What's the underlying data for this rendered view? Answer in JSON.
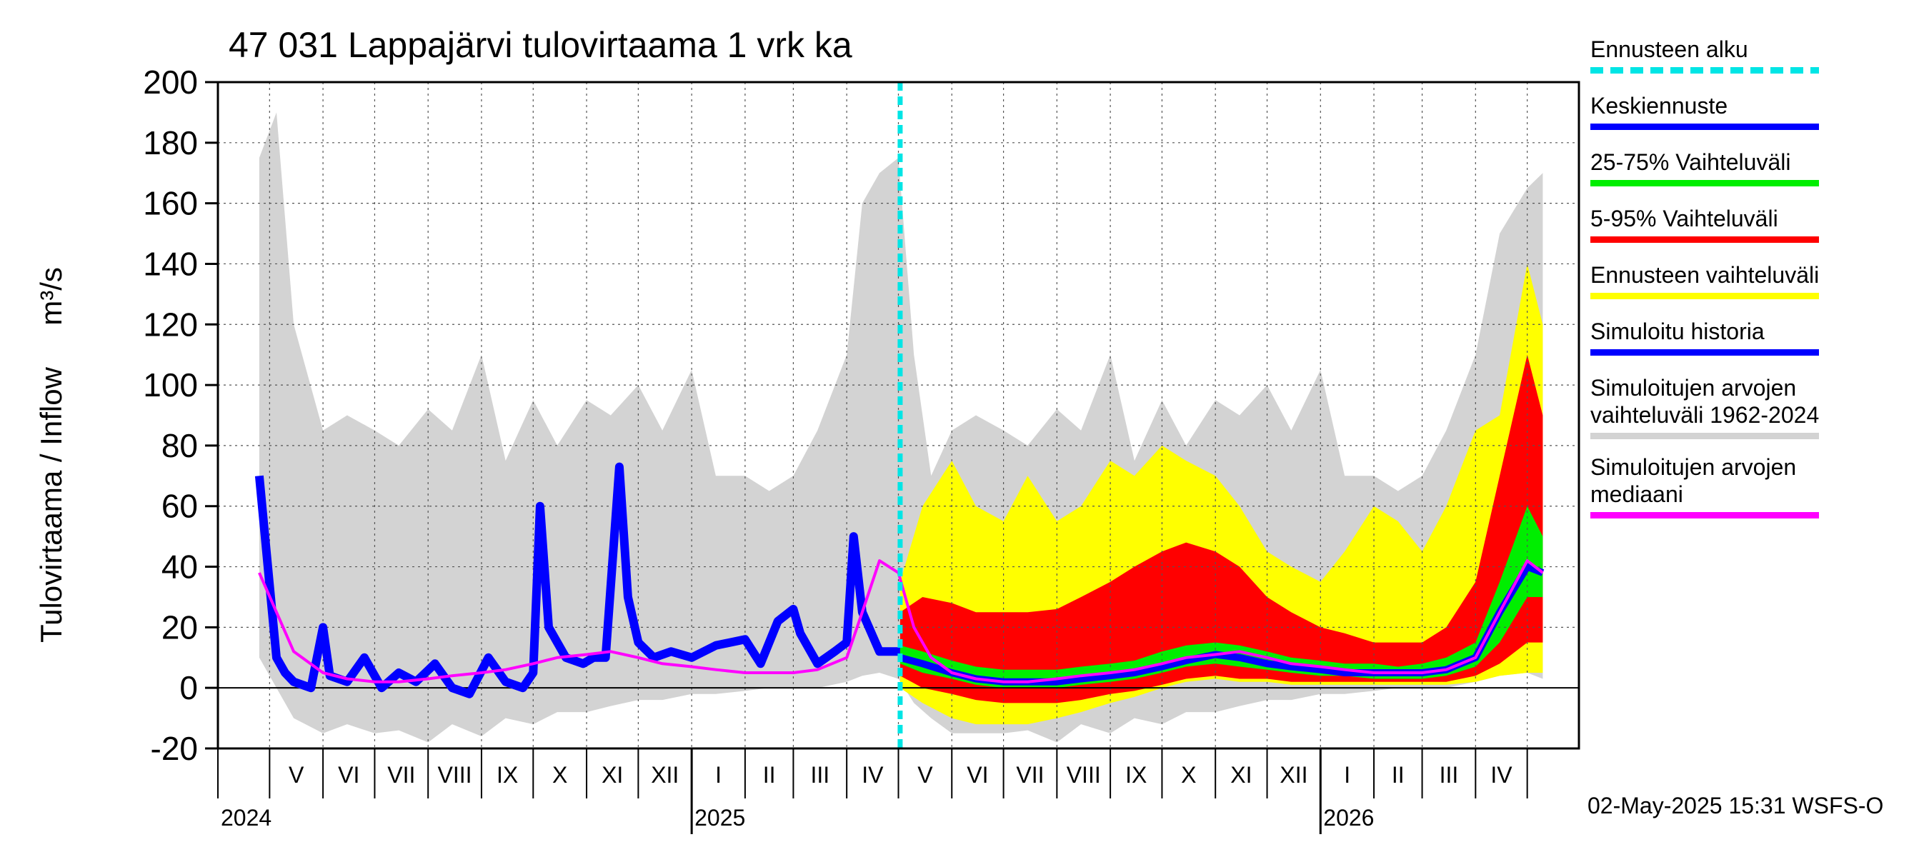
{
  "title": "47 031 Lappajärvi tulovirtaama 1 vrk ka",
  "y_axis_label": "Tulovirtaama / Inflow",
  "y_axis_unit": "m³/s",
  "timestamp": "02-May-2025 15:31 WSFS-O",
  "colors": {
    "forecast_start": "#00e5e5",
    "mean_forecast": "#0000ff",
    "range_25_75": "#00ee00",
    "range_5_95": "#ff0000",
    "forecast_range": "#ffff00",
    "simulated_history": "#0000ff",
    "historical_range": "#d3d3d3",
    "historical_median": "#ff00ff"
  },
  "legend": [
    {
      "label": "Ennusteen alku",
      "color": "#00e5e5",
      "style": "dashed"
    },
    {
      "label": "Keskiennuste",
      "color": "#0000ff",
      "style": "solid"
    },
    {
      "label": "25-75% Vaihteluväli",
      "color": "#00ee00",
      "style": "solid"
    },
    {
      "label": "5-95% Vaihteluväli",
      "color": "#ff0000",
      "style": "solid"
    },
    {
      "label": "Ennusteen vaihteluväli",
      "color": "#ffff00",
      "style": "solid"
    },
    {
      "label": "Simuloitu historia",
      "color": "#0000ff",
      "style": "solid"
    },
    {
      "label": "Simuloitujen arvojen\nvaihteluväli 1962-2024",
      "color": "#d3d3d3",
      "style": "solid"
    },
    {
      "label": "Simuloitujen arvojen\nmediaani",
      "color": "#ff00ff",
      "style": "solid"
    }
  ],
  "chart_data": {
    "type": "area",
    "title": "47 031 Lappajärvi tulovirtaama 1 vrk ka",
    "ylabel": "Tulovirtaama / Inflow",
    "yunit": "m³/s",
    "ylim": [
      -20,
      200
    ],
    "yticks": [
      -20,
      0,
      20,
      40,
      60,
      80,
      100,
      120,
      140,
      160,
      180,
      200
    ],
    "xlim": [
      "2024-04-01",
      "2026-05-31"
    ],
    "forecast_start": "2025-05-02",
    "month_labels": [
      {
        "label": "V",
        "month": "2024-05"
      },
      {
        "label": "VI",
        "month": "2024-06"
      },
      {
        "label": "VII",
        "month": "2024-07"
      },
      {
        "label": "VIII",
        "month": "2024-08"
      },
      {
        "label": "IX",
        "month": "2024-09"
      },
      {
        "label": "X",
        "month": "2024-10"
      },
      {
        "label": "XI",
        "month": "2024-11"
      },
      {
        "label": "XII",
        "month": "2024-12"
      },
      {
        "label": "I",
        "month": "2025-01"
      },
      {
        "label": "II",
        "month": "2025-02"
      },
      {
        "label": "III",
        "month": "2025-03"
      },
      {
        "label": "IV",
        "month": "2025-04"
      },
      {
        "label": "V",
        "month": "2025-05"
      },
      {
        "label": "VI",
        "month": "2025-06"
      },
      {
        "label": "VII",
        "month": "2025-07"
      },
      {
        "label": "VIII",
        "month": "2025-08"
      },
      {
        "label": "IX",
        "month": "2025-09"
      },
      {
        "label": "X",
        "month": "2025-10"
      },
      {
        "label": "XI",
        "month": "2025-11"
      },
      {
        "label": "XII",
        "month": "2025-12"
      },
      {
        "label": "I",
        "month": "2026-01"
      },
      {
        "label": "II",
        "month": "2026-02"
      },
      {
        "label": "III",
        "month": "2026-03"
      },
      {
        "label": "IV",
        "month": "2026-04"
      }
    ],
    "year_labels": [
      {
        "label": "2024",
        "date": "2024-05-01"
      },
      {
        "label": "2025",
        "date": "2025-01-01"
      },
      {
        "label": "2026",
        "date": "2026-01-01"
      }
    ],
    "historical_range": {
      "dates": [
        "2024-04-25",
        "2024-05-05",
        "2024-05-15",
        "2024-06-01",
        "2024-06-15",
        "2024-07-01",
        "2024-07-15",
        "2024-08-01",
        "2024-08-15",
        "2024-09-01",
        "2024-09-15",
        "2024-10-01",
        "2024-10-15",
        "2024-11-01",
        "2024-11-15",
        "2024-12-01",
        "2024-12-15",
        "2025-01-01",
        "2025-01-15",
        "2025-02-01",
        "2025-02-15",
        "2025-03-01",
        "2025-03-15",
        "2025-04-01",
        "2025-04-10",
        "2025-04-20",
        "2025-05-01",
        "2025-05-10",
        "2025-05-20",
        "2025-06-01",
        "2025-06-15",
        "2025-07-01",
        "2025-07-15",
        "2025-08-01",
        "2025-08-15",
        "2025-09-01",
        "2025-09-15",
        "2025-10-01",
        "2025-10-15",
        "2025-11-01",
        "2025-11-15",
        "2025-12-01",
        "2025-12-15",
        "2026-01-01",
        "2026-01-15",
        "2026-02-01",
        "2026-02-15",
        "2026-03-01",
        "2026-03-15",
        "2026-04-01",
        "2026-04-15",
        "2026-05-01",
        "2026-05-10"
      ],
      "low": [
        10,
        0,
        -10,
        -15,
        -12,
        -15,
        -14,
        -18,
        -12,
        -16,
        -10,
        -12,
        -8,
        -8,
        -6,
        -4,
        -4,
        -2,
        -2,
        -1,
        0,
        0,
        0,
        2,
        4,
        5,
        3,
        -5,
        -10,
        -15,
        -15,
        -15,
        -14,
        -18,
        -12,
        -15,
        -10,
        -12,
        -8,
        -8,
        -6,
        -4,
        -4,
        -2,
        -2,
        -1,
        0,
        0,
        0,
        2,
        4,
        5,
        3
      ],
      "high": [
        175,
        190,
        120,
        85,
        90,
        85,
        80,
        92,
        85,
        110,
        75,
        95,
        80,
        95,
        90,
        100,
        85,
        105,
        70,
        70,
        65,
        70,
        85,
        110,
        160,
        170,
        175,
        110,
        70,
        85,
        90,
        85,
        80,
        92,
        85,
        110,
        75,
        95,
        80,
        95,
        90,
        100,
        85,
        105,
        70,
        70,
        65,
        70,
        85,
        110,
        150,
        165,
        170
      ]
    },
    "historical_median": {
      "dates": [
        "2024-04-25",
        "2024-05-05",
        "2024-05-15",
        "2024-06-01",
        "2024-06-15",
        "2024-07-01",
        "2024-07-15",
        "2024-08-01",
        "2024-08-15",
        "2024-09-01",
        "2024-09-15",
        "2024-10-01",
        "2024-10-15",
        "2024-11-01",
        "2024-11-15",
        "2024-12-01",
        "2024-12-15",
        "2025-01-01",
        "2025-01-15",
        "2025-02-01",
        "2025-02-15",
        "2025-03-01",
        "2025-03-15",
        "2025-04-01",
        "2025-04-10",
        "2025-04-20",
        "2025-05-01",
        "2025-05-10",
        "2025-05-20",
        "2025-06-01",
        "2025-06-15",
        "2025-07-01",
        "2025-07-15",
        "2025-08-01",
        "2025-08-15",
        "2025-09-01",
        "2025-09-15",
        "2025-10-01",
        "2025-10-15",
        "2025-11-01",
        "2025-11-15",
        "2025-12-01",
        "2025-12-15",
        "2026-01-01",
        "2026-01-15",
        "2026-02-01",
        "2026-02-15",
        "2026-03-01",
        "2026-03-15",
        "2026-04-01",
        "2026-04-15",
        "2026-05-01",
        "2026-05-10"
      ],
      "values": [
        38,
        25,
        12,
        5,
        3,
        2,
        2,
        3,
        4,
        5,
        6,
        8,
        10,
        11,
        12,
        10,
        8,
        7,
        6,
        5,
        5,
        5,
        6,
        10,
        25,
        42,
        38,
        20,
        10,
        5,
        3,
        2,
        2,
        3,
        4,
        5,
        6,
        8,
        10,
        11,
        12,
        10,
        8,
        7,
        6,
        5,
        5,
        5,
        6,
        10,
        25,
        42,
        38
      ]
    },
    "simulated_history": {
      "dates": [
        "2024-04-25",
        "2024-04-30",
        "2024-05-05",
        "2024-05-10",
        "2024-05-15",
        "2024-05-25",
        "2024-06-01",
        "2024-06-05",
        "2024-06-15",
        "2024-06-25",
        "2024-07-05",
        "2024-07-15",
        "2024-07-25",
        "2024-08-05",
        "2024-08-15",
        "2024-08-25",
        "2024-09-05",
        "2024-09-15",
        "2024-09-25",
        "2024-10-01",
        "2024-10-05",
        "2024-10-10",
        "2024-10-20",
        "2024-10-30",
        "2024-11-05",
        "2024-11-12",
        "2024-11-20",
        "2024-11-25",
        "2024-12-01",
        "2024-12-10",
        "2024-12-20",
        "2025-01-01",
        "2025-01-15",
        "2025-02-01",
        "2025-02-10",
        "2025-02-20",
        "2025-03-01",
        "2025-03-05",
        "2025-03-15",
        "2025-03-25",
        "2025-04-01",
        "2025-04-05",
        "2025-04-10",
        "2025-04-20",
        "2025-05-02"
      ],
      "values": [
        70,
        40,
        10,
        5,
        2,
        0,
        20,
        4,
        2,
        10,
        0,
        5,
        2,
        8,
        0,
        -2,
        10,
        2,
        0,
        5,
        60,
        20,
        10,
        8,
        10,
        10,
        73,
        30,
        15,
        10,
        12,
        10,
        14,
        16,
        8,
        22,
        26,
        18,
        8,
        12,
        15,
        50,
        25,
        12,
        12
      ]
    },
    "forecast": {
      "dates": [
        "2025-05-02",
        "2025-05-15",
        "2025-06-01",
        "2025-06-15",
        "2025-07-01",
        "2025-07-15",
        "2025-08-01",
        "2025-08-15",
        "2025-09-01",
        "2025-09-15",
        "2025-10-01",
        "2025-10-15",
        "2025-11-01",
        "2025-11-15",
        "2025-12-01",
        "2025-12-15",
        "2026-01-01",
        "2026-01-15",
        "2026-02-01",
        "2026-02-15",
        "2026-03-01",
        "2026-03-15",
        "2026-04-01",
        "2026-04-15",
        "2026-05-01",
        "2026-05-10"
      ],
      "mean": [
        10,
        8,
        5,
        3,
        2,
        2,
        2,
        3,
        4,
        5,
        7,
        9,
        11,
        10,
        8,
        7,
        6,
        5,
        5,
        5,
        5,
        6,
        10,
        25,
        40,
        38
      ],
      "p25": [
        8,
        5,
        3,
        1,
        0,
        0,
        0,
        1,
        2,
        3,
        5,
        7,
        8,
        7,
        6,
        5,
        4,
        4,
        3,
        3,
        3,
        4,
        7,
        15,
        30,
        30
      ],
      "p75": [
        14,
        12,
        9,
        7,
        6,
        6,
        6,
        7,
        8,
        9,
        12,
        14,
        15,
        14,
        12,
        10,
        9,
        8,
        8,
        7,
        8,
        10,
        15,
        35,
        60,
        50
      ],
      "p5": [
        4,
        0,
        -2,
        -4,
        -5,
        -5,
        -5,
        -4,
        -2,
        -1,
        1,
        3,
        4,
        3,
        3,
        2,
        2,
        2,
        2,
        2,
        2,
        2,
        4,
        8,
        15,
        15
      ],
      "p95": [
        25,
        30,
        28,
        25,
        25,
        25,
        26,
        30,
        35,
        40,
        45,
        48,
        45,
        40,
        30,
        25,
        20,
        18,
        15,
        15,
        15,
        20,
        35,
        70,
        110,
        90
      ],
      "min": [
        0,
        -5,
        -10,
        -12,
        -12,
        -12,
        -10,
        -8,
        -5,
        -3,
        0,
        2,
        3,
        2,
        2,
        1,
        1,
        1,
        1,
        1,
        1,
        1,
        2,
        4,
        5,
        5
      ],
      "max": [
        35,
        60,
        75,
        60,
        55,
        70,
        55,
        60,
        75,
        70,
        80,
        75,
        70,
        60,
        45,
        40,
        35,
        45,
        60,
        55,
        45,
        60,
        85,
        90,
        140,
        120
      ]
    }
  }
}
